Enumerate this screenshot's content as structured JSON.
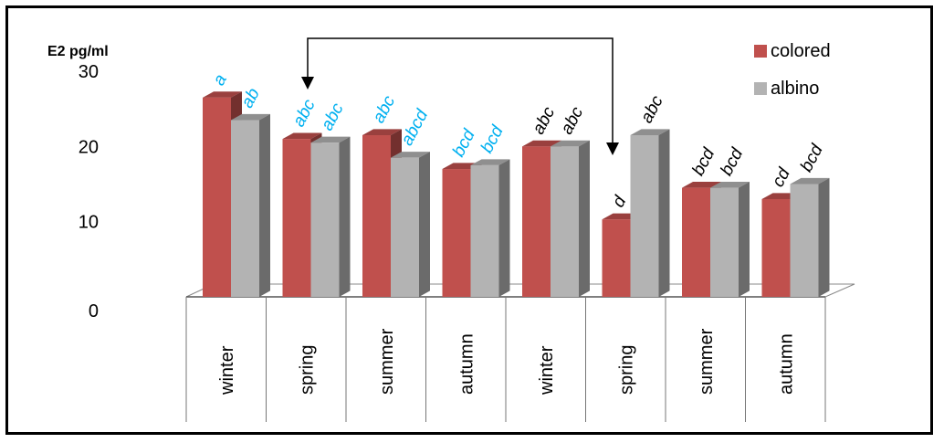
{
  "chart_data": {
    "type": "bar",
    "title": "",
    "ylabel": "E2 pg/ml",
    "xlabel": "",
    "ylim": [
      0,
      30
    ],
    "yticks": [
      "0",
      "10",
      "20",
      "30"
    ],
    "categories": [
      "winter",
      "spring",
      "summer",
      "autumn",
      "winter",
      "spring",
      "summer",
      "autumn"
    ],
    "series": [
      {
        "name": "colored",
        "color": "#c0504d",
        "values": [
          26.5,
          21.0,
          21.5,
          17.0,
          20.0,
          10.3,
          14.5,
          13.0
        ],
        "letters": [
          "a",
          "abc",
          "abc",
          "bcd",
          "abc",
          "d",
          "bcd",
          "cd"
        ]
      },
      {
        "name": "albino",
        "color": "#b3b3b3",
        "values": [
          23.5,
          20.5,
          18.5,
          17.5,
          20.0,
          21.5,
          14.5,
          15.0
        ],
        "letters": [
          "ab",
          "abc",
          "abcd",
          "bcd",
          "abc",
          "abc",
          "bcd",
          "bcd"
        ]
      }
    ],
    "letter_colors": {
      "first_half": "#00b0f0",
      "second_half": "#000000"
    },
    "legend": {
      "position": "top-right",
      "items": [
        "colored",
        "albino"
      ]
    },
    "grid": false
  }
}
